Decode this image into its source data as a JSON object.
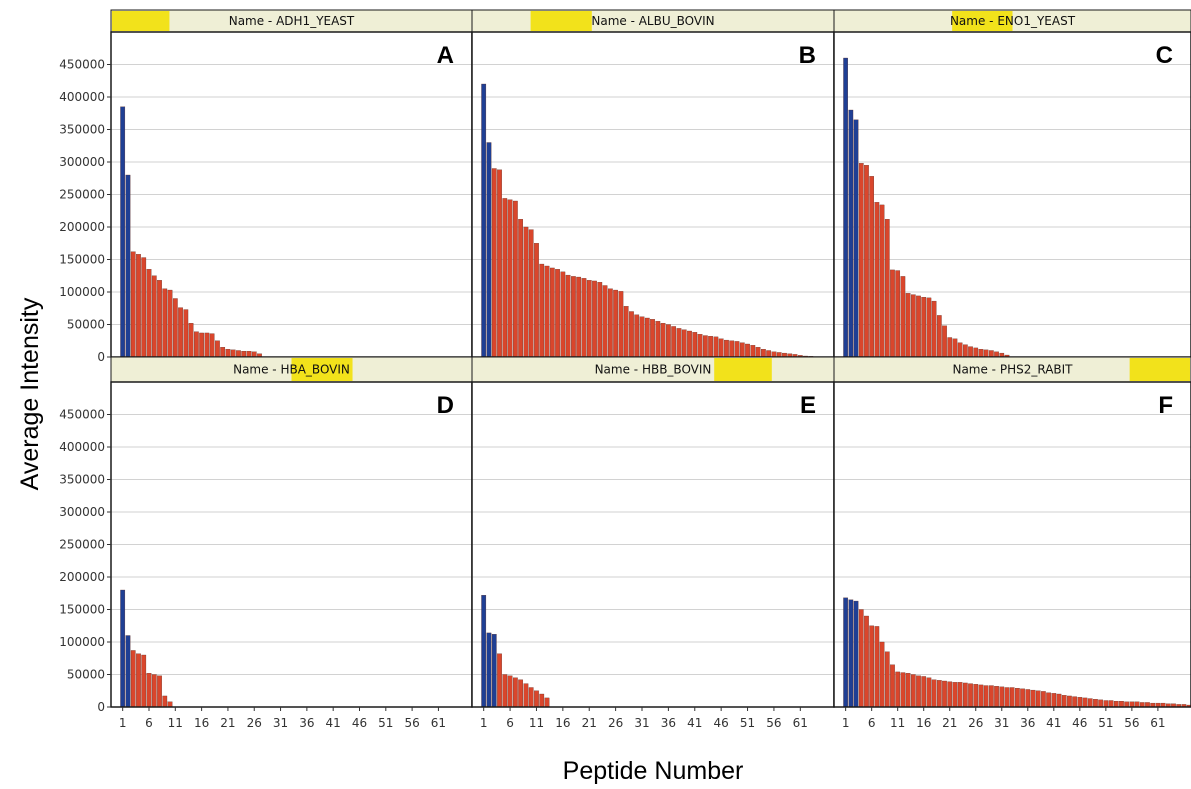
{
  "chart_data": {
    "type": "bar",
    "ylabel": "Average Intensity",
    "xlabel": "Peptide Number",
    "ylim": [
      0,
      500000
    ],
    "y_ticks": [
      0,
      50000,
      100000,
      150000,
      200000,
      250000,
      300000,
      350000,
      400000,
      450000
    ],
    "x_ticks": [
      1,
      6,
      11,
      16,
      21,
      26,
      31,
      36,
      41,
      46,
      51,
      56,
      61
    ],
    "x_max": 68,
    "grid": true,
    "colors": {
      "highlight": "#1f3f94",
      "bar": "#d9462c",
      "strip": "#efefd6",
      "strip_accent": "#f2e21b",
      "frame": "#1a1a1a",
      "grid": "#d2d2d2"
    },
    "panels": [
      {
        "letter": "A",
        "strip_label": "Name - ADH1_YEAST",
        "highlight_count": 2,
        "strip_accent": [
          0.0,
          0.16
        ],
        "values": [
          385000,
          280000,
          162000,
          158000,
          153000,
          135000,
          125000,
          118000,
          105000,
          103000,
          90000,
          76000,
          73000,
          52000,
          39000,
          37000,
          37000,
          36000,
          25000,
          15000,
          12000,
          11000,
          10000,
          9000,
          9000,
          8000,
          5000
        ]
      },
      {
        "letter": "B",
        "strip_label": "Name - ALBU_BOVIN",
        "highlight_count": 2,
        "strip_accent": [
          0.16,
          0.33
        ],
        "values": [
          420000,
          330000,
          290000,
          288000,
          244000,
          242000,
          240000,
          212000,
          200000,
          196000,
          175000,
          143000,
          140000,
          137000,
          135000,
          131000,
          126000,
          124000,
          123000,
          121000,
          118000,
          117000,
          115000,
          110000,
          105000,
          103000,
          101000,
          78000,
          70000,
          65000,
          62000,
          60000,
          58000,
          55000,
          52000,
          50000,
          47000,
          44000,
          42000,
          40000,
          38000,
          35000,
          33000,
          32000,
          31000,
          28000,
          26000,
          25000,
          24000,
          22000,
          20000,
          18000,
          15000,
          12000,
          10000,
          8000,
          7000,
          6000,
          5000,
          4000,
          2500,
          1500,
          1000
        ]
      },
      {
        "letter": "C",
        "strip_label": "Name - ENO1_YEAST",
        "highlight_count": 3,
        "strip_accent": [
          0.33,
          0.5
        ],
        "values": [
          460000,
          380000,
          365000,
          298000,
          295000,
          278000,
          238000,
          234000,
          212000,
          134000,
          133000,
          124000,
          98000,
          96000,
          94000,
          92000,
          91000,
          86000,
          64000,
          48000,
          30000,
          28000,
          22000,
          19000,
          16000,
          14000,
          12000,
          11000,
          10000,
          8000,
          6000,
          3000
        ]
      },
      {
        "letter": "D",
        "strip_label": "Name - HBA_BOVIN",
        "highlight_count": 2,
        "strip_accent": [
          0.5,
          0.67
        ],
        "values": [
          180000,
          110000,
          87000,
          82000,
          80000,
          52000,
          50000,
          48000,
          17000,
          8000
        ]
      },
      {
        "letter": "E",
        "strip_label": "Name - HBB_BOVIN",
        "highlight_count": 3,
        "strip_accent": [
          0.67,
          0.83
        ],
        "values": [
          172000,
          114000,
          112000,
          82000,
          50000,
          48000,
          45000,
          42000,
          36000,
          30000,
          25000,
          20000,
          14000
        ]
      },
      {
        "letter": "F",
        "strip_label": "Name - PHS2_RABIT",
        "highlight_count": 3,
        "strip_accent": [
          0.83,
          1.0
        ],
        "values": [
          168000,
          165000,
          163000,
          150000,
          140000,
          125000,
          124000,
          100000,
          85000,
          65000,
          54000,
          53000,
          52000,
          50000,
          48000,
          47000,
          45000,
          42000,
          41000,
          40000,
          39000,
          38000,
          38000,
          37000,
          36000,
          35000,
          34000,
          33000,
          33000,
          32000,
          31000,
          30000,
          30000,
          29000,
          28000,
          27000,
          26000,
          25000,
          24000,
          22000,
          21000,
          20000,
          18000,
          17000,
          16000,
          15000,
          14000,
          13000,
          12000,
          11000,
          10000,
          10000,
          9000,
          9000,
          8000,
          8000,
          8000,
          7000,
          7000,
          6000,
          6000,
          6000,
          5000,
          5000,
          4000,
          4000,
          3000
        ]
      }
    ]
  }
}
